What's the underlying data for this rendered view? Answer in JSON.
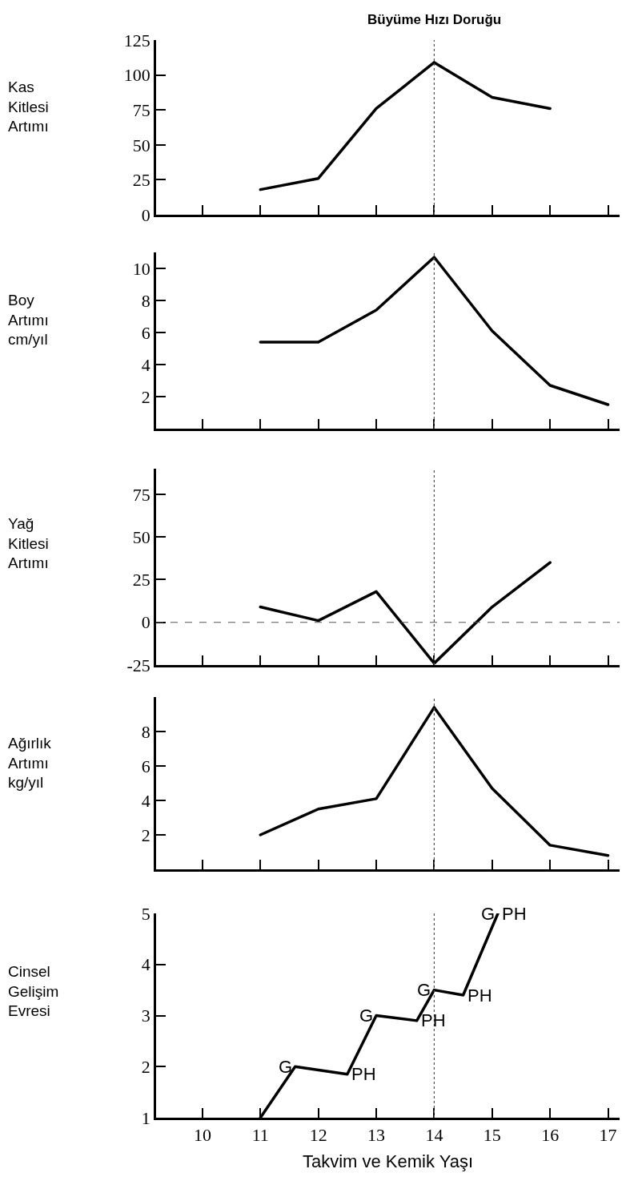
{
  "chart_data": [
    {
      "type": "line",
      "ylabel": "Kas\nKitlesi\nArtımı",
      "x": [
        11,
        12,
        13,
        14,
        15,
        16
      ],
      "values": [
        18,
        26,
        76,
        109,
        84,
        76
      ],
      "color": "#000000",
      "xlim": [
        9.2,
        17.2
      ],
      "xticks": [
        10,
        11,
        12,
        13,
        14,
        15,
        16,
        17
      ],
      "ylim": [
        0,
        125
      ],
      "yticks": [
        0,
        25,
        50,
        75,
        100,
        125
      ],
      "tick_labels": "y",
      "marker": "none",
      "line_style": "solid",
      "ref_lines": [
        {
          "axis": "x",
          "value": 14,
          "label": "Büyüme Hızı Doruğu",
          "line_style": "dotted"
        }
      ]
    },
    {
      "type": "line",
      "ylabel": "Boy\nArtımı\ncm/yıl",
      "x": [
        11,
        12,
        13,
        14,
        15,
        16,
        17
      ],
      "values": [
        5.4,
        5.4,
        7.4,
        10.7,
        6.1,
        2.7,
        1.5
      ],
      "color": "#000000",
      "xlim": [
        9.2,
        17.2
      ],
      "xticks": [
        10,
        11,
        12,
        13,
        14,
        15,
        16,
        17
      ],
      "ylim": [
        0,
        11
      ],
      "yticks": [
        2,
        4,
        6,
        8,
        10
      ],
      "tick_labels": "y",
      "marker": "none",
      "line_style": "solid",
      "ref_lines": [
        {
          "axis": "x",
          "value": 14,
          "line_style": "dotted"
        }
      ]
    },
    {
      "type": "line",
      "ylabel": "Yağ\nKitlesi\nArtımı",
      "x": [
        11,
        12,
        13,
        14,
        15,
        16
      ],
      "values": [
        9,
        1,
        18,
        -24,
        9,
        35
      ],
      "color": "#000000",
      "xlim": [
        9.2,
        17.2
      ],
      "xticks": [
        10,
        11,
        12,
        13,
        14,
        15,
        16,
        17
      ],
      "ylim": [
        -25,
        90
      ],
      "yticks": [
        -25,
        0,
        25,
        50,
        75
      ],
      "tick_labels": "y",
      "marker": "none",
      "line_style": "solid",
      "ref_lines": [
        {
          "axis": "x",
          "value": 14,
          "line_style": "dotted"
        },
        {
          "axis": "y",
          "value": 0,
          "line_style": "dashed"
        }
      ]
    },
    {
      "type": "line",
      "ylabel": "Ağırlık\nArtımı\nkg/yıl",
      "x": [
        11,
        12,
        13,
        14,
        15,
        16,
        17
      ],
      "values": [
        2.0,
        3.5,
        4.1,
        9.4,
        4.7,
        1.4,
        0.8
      ],
      "color": "#000000",
      "xlim": [
        9.2,
        17.2
      ],
      "xticks": [
        10,
        11,
        12,
        13,
        14,
        15,
        16,
        17
      ],
      "ylim": [
        0,
        10
      ],
      "yticks": [
        2,
        4,
        6,
        8
      ],
      "tick_labels": "y",
      "marker": "none",
      "line_style": "solid",
      "ref_lines": [
        {
          "axis": "x",
          "value": 14,
          "line_style": "dotted"
        }
      ]
    },
    {
      "type": "line",
      "ylabel": "Cinsel\nGelişim\nEvresi",
      "xlabel": "Takvim ve Kemik Yaşı",
      "x": [
        11,
        11.6,
        12.5,
        13.0,
        13.7,
        14.0,
        14.5,
        15.1
      ],
      "values": [
        1,
        2,
        1.85,
        3,
        2.9,
        3.5,
        3.4,
        5
      ],
      "color": "#000000",
      "xlim": [
        9.2,
        17.2
      ],
      "xticks": [
        10,
        11,
        12,
        13,
        14,
        15,
        16,
        17
      ],
      "ylim": [
        1,
        5
      ],
      "yticks": [
        1,
        2,
        3,
        4,
        5
      ],
      "marker": "none",
      "line_style": "solid",
      "ref_lines": [
        {
          "axis": "x",
          "value": 14,
          "line_style": "dotted"
        }
      ],
      "annotations": [
        {
          "text": "G",
          "x": 11.6,
          "y": 2
        },
        {
          "text": "PH",
          "x": 12.5,
          "y": 1.85
        },
        {
          "text": "G",
          "x": 13.0,
          "y": 3
        },
        {
          "text": "PH",
          "x": 13.7,
          "y": 2.9
        },
        {
          "text": "G",
          "x": 14.0,
          "y": 3.5
        },
        {
          "text": "PH",
          "x": 14.5,
          "y": 3.4
        },
        {
          "text": "G",
          "x": 15.1,
          "y": 5
        },
        {
          "text": "PH",
          "x": 15.1,
          "y": 5
        }
      ]
    }
  ]
}
